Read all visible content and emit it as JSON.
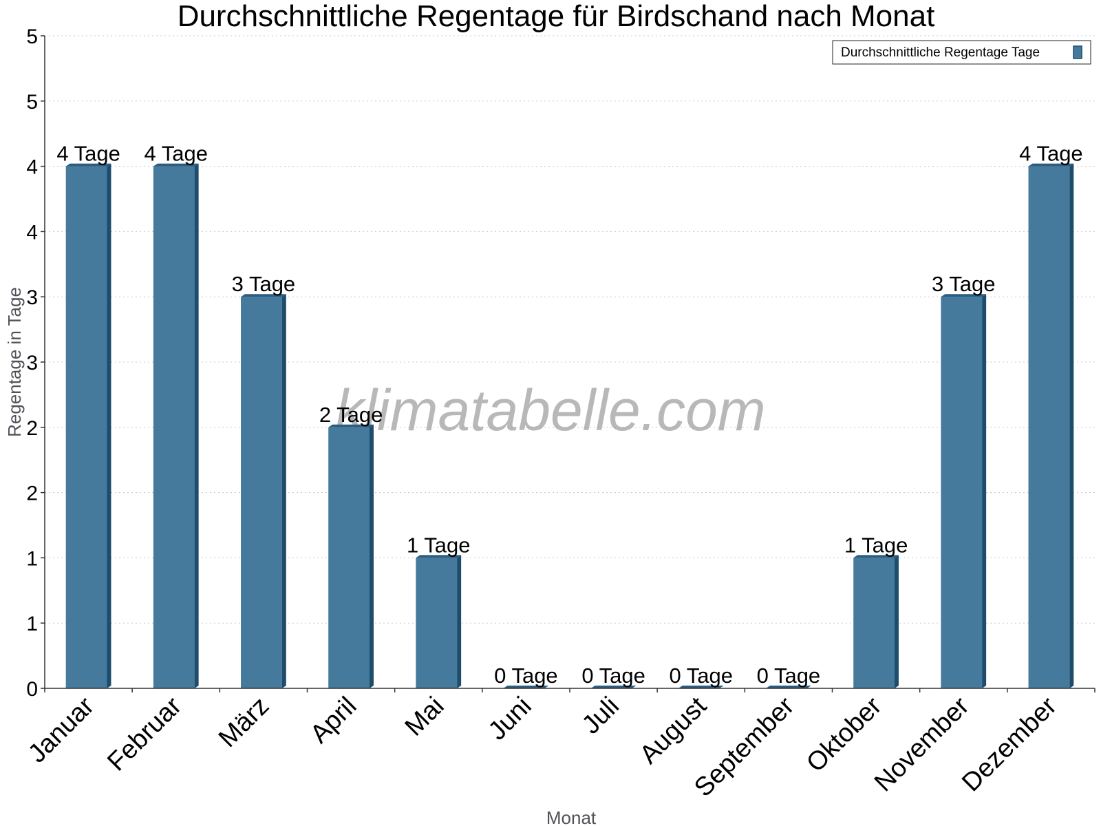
{
  "chart_data": {
    "type": "bar",
    "title": "Durchschnittliche Regentage für Birdschand nach Monat",
    "xlabel": "Monat",
    "ylabel": "Regentage in Tage",
    "categories": [
      "Januar",
      "Februar",
      "März",
      "April",
      "Mai",
      "Juni",
      "Juli",
      "August",
      "September",
      "Oktober",
      "November",
      "Dezember"
    ],
    "series": [
      {
        "name": "Durchschnittliche Regentage Tage",
        "values": [
          4,
          4,
          3,
          2,
          1,
          0,
          0,
          0,
          0,
          1,
          3,
          4
        ],
        "labels": [
          "4 Tage",
          "4 Tage",
          "3 Tage",
          "2 Tage",
          "1 Tage",
          "0 Tage",
          "0 Tage",
          "0 Tage",
          "0 Tage",
          "1 Tage",
          "3 Tage",
          "4 Tage"
        ]
      }
    ],
    "ylim": [
      0,
      5
    ],
    "y_tick_labels": [
      "0",
      "1",
      "1",
      "2",
      "2",
      "3",
      "3",
      "4",
      "4",
      "5"
    ],
    "grid": true,
    "legend_position": "top-right",
    "colors": {
      "bar_front": "#457a9c",
      "bar_side": "#1d4c6d",
      "bar_top": "#2a5d80"
    }
  },
  "watermark": "klimatabelle.com"
}
